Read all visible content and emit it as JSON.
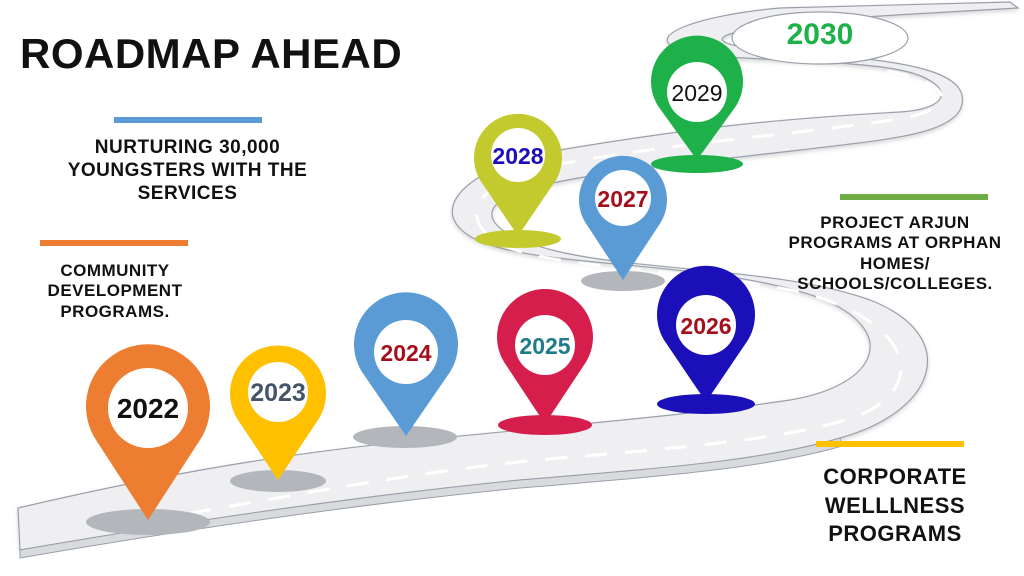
{
  "title": "ROADMAP AHEAD",
  "captions": {
    "nurturing": "NURTURING 30,000 YOUNGSTERS WITH THE SERVICES",
    "community": "COMMUNITY DEVELOPMENT PROGRAMS.",
    "arjun": "PROJECT ARJUN PROGRAMS AT ORPHAN HOMES/ SCHOOLS/COLLEGES.",
    "corporate": "CORPORATE WELLLNESS PROGRAMS"
  },
  "years": {
    "y2022": "2022",
    "y2023": "2023",
    "y2024": "2024",
    "y2025": "2025",
    "y2026": "2026",
    "y2027": "2027",
    "y2028": "2028",
    "y2029": "2029",
    "y2030": "2030"
  },
  "colors": {
    "pin2022": "#ed7d31",
    "pin2023": "#ffc000",
    "pin2024": "#5b9bd5",
    "pin2025": "#d61e4c",
    "pin2026": "#1a0fb8",
    "pin2027": "#5b9bd5",
    "pin2028": "#c3ca2e",
    "pin2029": "#1eb149",
    "accent2030": "#1eb149",
    "barBlue": "#5b9bd5",
    "barOrange": "#ed7d31",
    "barGreen": "#70ad47",
    "barYellow": "#ffc000"
  }
}
